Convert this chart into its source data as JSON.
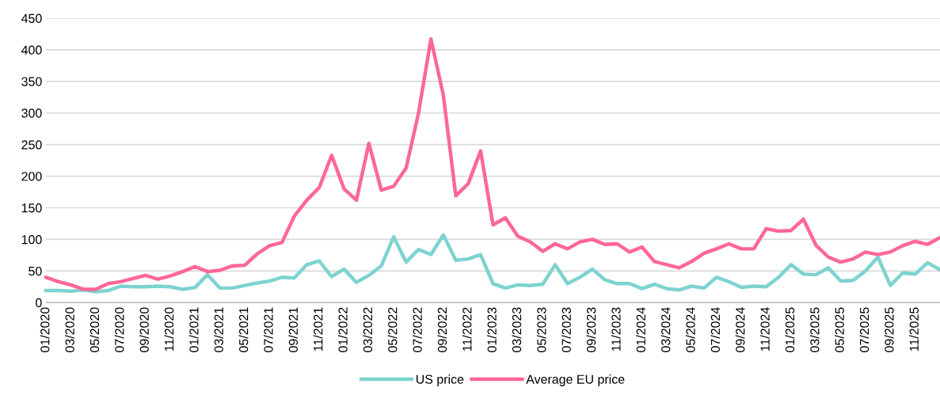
{
  "chart_data": {
    "type": "line",
    "categories": [
      "01/2020",
      null,
      "03/2020",
      null,
      "05/2020",
      null,
      "07/2020",
      null,
      "09/2020",
      null,
      "11/2020",
      null,
      "01/2021",
      null,
      "03/2021",
      null,
      "05/2021",
      null,
      "07/2021",
      null,
      "09/2021",
      null,
      "11/2021",
      null,
      "01/2022",
      null,
      "03/2022",
      null,
      "05/2022",
      null,
      "07/2022",
      null,
      "09/2022",
      null,
      "11/2022",
      null,
      "01/2023",
      null,
      "03/2023",
      null,
      "05/2023",
      null,
      "07/2023",
      null,
      "09/2023",
      null,
      "11/2023",
      null,
      "01/2024",
      null,
      "03/2024",
      null,
      "05/2024",
      null,
      "07/2024",
      null,
      "09/2024",
      null,
      "11/2024",
      null,
      "01/2025",
      null,
      "03/2025",
      null,
      "05/2025",
      null,
      "07/2025",
      null,
      "09/2025",
      null,
      "11/2025",
      null,
      null
    ],
    "series": [
      {
        "name": "US price",
        "color": "#7dd3cf",
        "values": [
          19,
          19,
          18,
          20,
          17,
          19,
          26,
          25,
          25,
          26,
          25,
          21,
          24,
          44,
          23,
          23,
          27,
          31,
          34,
          40,
          39,
          60,
          66,
          41,
          53,
          32,
          43,
          58,
          104,
          64,
          84,
          76,
          107,
          67,
          69,
          76,
          30,
          23,
          28,
          27,
          29,
          60,
          30,
          40,
          53,
          36,
          30,
          30,
          22,
          29,
          22,
          20,
          26,
          23,
          40,
          33,
          24,
          26,
          25,
          40,
          60,
          45,
          44,
          55,
          34,
          35,
          50,
          72,
          27,
          47,
          45,
          63,
          52
        ]
      },
      {
        "name": "Average EU price",
        "color": "#ff6699",
        "values": [
          40,
          33,
          28,
          21,
          21,
          30,
          33,
          38,
          43,
          37,
          42,
          49,
          57,
          49,
          51,
          58,
          59,
          77,
          90,
          95,
          137,
          162,
          182,
          233,
          180,
          162,
          252,
          178,
          184,
          213,
          300,
          417,
          328,
          169,
          188,
          240,
          123,
          134,
          105,
          96,
          81,
          93,
          85,
          96,
          100,
          92,
          93,
          80,
          88,
          65,
          60,
          55,
          65,
          78,
          85,
          93,
          85,
          85,
          117,
          113,
          114,
          132,
          91,
          72,
          64,
          69,
          80,
          76,
          80,
          90,
          97,
          92,
          103
        ]
      }
    ],
    "ylim": [
      0,
      450
    ],
    "yticks": [
      0,
      50,
      100,
      150,
      200,
      250,
      300,
      350,
      400,
      450
    ],
    "grid": "y",
    "legend": "bottom",
    "marker": "none",
    "line_style": "solid"
  }
}
